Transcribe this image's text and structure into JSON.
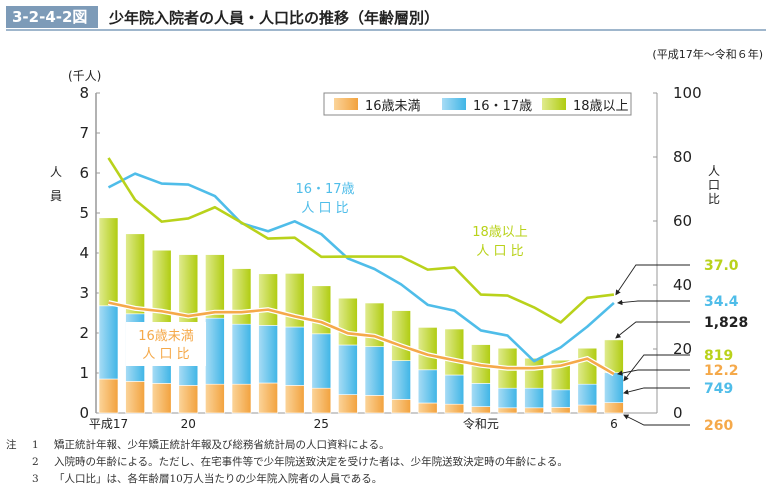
{
  "header": {
    "figure_no": "3-2-4-2図",
    "title": "少年院入院者の人員・人口比の推移（年齢層別）",
    "period": "(平成17年～令和６年)"
  },
  "colors": {
    "under16": "#f5a94a",
    "age16_17": "#4fbde9",
    "age18plus": "#b9d21b"
  },
  "chart_data": {
    "type": "bar",
    "stacked": true,
    "title": "少年院入院者の人員・人口比の推移（年齢層別）",
    "categories": [
      "平成17",
      "18",
      "19",
      "20",
      "21",
      "22",
      "23",
      "24",
      "25",
      "26",
      "27",
      "28",
      "29",
      "30",
      "令和元",
      "2",
      "3",
      "4",
      "5",
      "6"
    ],
    "x_tick_labels": [
      "平成17",
      "20",
      "25",
      "令和元",
      "6"
    ],
    "x_tick_indices": [
      0,
      3,
      8,
      14,
      19
    ],
    "left_axis": {
      "label": "人員",
      "unit": "(千人)",
      "ylim": [
        0,
        8
      ],
      "ticks": [
        0,
        1,
        2,
        3,
        4,
        5,
        6,
        7,
        8
      ]
    },
    "right_axis": {
      "label": "人口比",
      "ylim": [
        0,
        100
      ],
      "ticks": [
        0,
        20,
        40,
        60,
        80,
        100
      ]
    },
    "series": [
      {
        "name": "16歳未満",
        "axis": "left",
        "kind": "bar",
        "values": [
          0.85,
          0.79,
          0.74,
          0.69,
          0.72,
          0.72,
          0.75,
          0.69,
          0.62,
          0.46,
          0.44,
          0.34,
          0.25,
          0.22,
          0.16,
          0.13,
          0.13,
          0.14,
          0.2,
          0.26
        ]
      },
      {
        "name": "16・17歳",
        "axis": "left",
        "kind": "bar",
        "values": [
          1.83,
          1.69,
          1.45,
          1.48,
          1.65,
          1.5,
          1.44,
          1.46,
          1.36,
          1.24,
          1.22,
          0.97,
          0.83,
          0.73,
          0.58,
          0.49,
          0.49,
          0.44,
          0.52,
          0.749
        ]
      },
      {
        "name": "18歳以上",
        "axis": "left",
        "kind": "bar",
        "values": [
          2.2,
          2.0,
          1.88,
          1.79,
          1.59,
          1.39,
          1.29,
          1.34,
          1.2,
          1.17,
          1.09,
          1.25,
          1.06,
          1.15,
          0.97,
          1.0,
          0.75,
          0.74,
          0.9,
          0.819
        ]
      },
      {
        "name": "16歳未満人口比",
        "axis": "right",
        "kind": "line",
        "values": [
          34.5,
          32.7,
          31.8,
          30.3,
          31.5,
          31.5,
          32.3,
          30.2,
          28.4,
          24.9,
          24.0,
          21.0,
          18.2,
          16.5,
          14.9,
          14.0,
          14.0,
          14.8,
          17.0,
          12.2
        ]
      },
      {
        "name": "16・17歳人口比",
        "axis": "right",
        "kind": "line",
        "values": [
          70.5,
          74.8,
          71.7,
          71.4,
          67.8,
          59.3,
          56.8,
          59.9,
          55.9,
          48.3,
          45.0,
          40.2,
          33.8,
          32.0,
          25.8,
          24.2,
          16.2,
          20.5,
          27.0,
          34.4
        ]
      },
      {
        "name": "18歳以上人口比",
        "axis": "right",
        "kind": "line",
        "values": [
          79.7,
          66.6,
          59.8,
          60.8,
          64.3,
          59.5,
          54.5,
          54.8,
          48.8,
          48.9,
          48.9,
          48.9,
          44.8,
          45.5,
          37.0,
          36.7,
          33.0,
          28.3,
          36.0,
          37.0
        ]
      }
    ],
    "annotations": {
      "under16_line_label": [
        "16歳未満",
        "人 口 比"
      ],
      "age16_17_line_label": [
        "16・17歳",
        "人 口 比"
      ],
      "age18_line_label": [
        "18歳以上",
        "人 口 比"
      ],
      "end_values": [
        {
          "text": "37.0",
          "color": "#b9d21b"
        },
        {
          "text": "34.4",
          "color": "#4fbde9"
        },
        {
          "text": "1,828",
          "color": "#222222"
        },
        {
          "text": "819",
          "color": "#b9d21b"
        },
        {
          "text": "12.2",
          "color": "#f5a94a"
        },
        {
          "text": "749",
          "color": "#4fbde9"
        },
        {
          "text": "260",
          "color": "#f5a94a"
        }
      ]
    },
    "legend": {
      "placement": "top-right",
      "entries": [
        "16歳未満",
        "16・17歳",
        "18歳以上"
      ]
    },
    "grid": false
  },
  "notes": [
    {
      "k": "注",
      "n": "1",
      "text": "矯正統計年報、少年矯正統計年報及び総務省統計局の人口資料による。"
    },
    {
      "k": "",
      "n": "2",
      "text": "入院時の年齢による。ただし、在宅事件等で少年院送致決定を受けた者は、少年院送致決定時の年齢による。"
    },
    {
      "k": "",
      "n": "3",
      "text": "「人口比」は、各年齢層10万人当たりの少年院入院者の人員である。"
    }
  ]
}
